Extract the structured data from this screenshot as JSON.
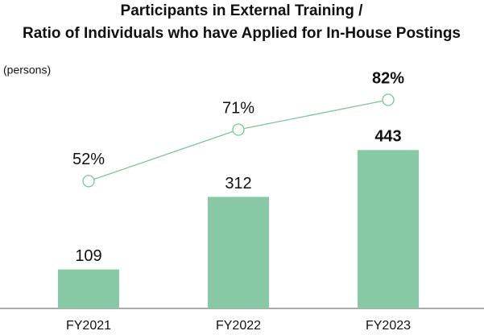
{
  "chart_data": {
    "type": "bar",
    "title": [
      "Participants in External Training /",
      "Ratio of Individuals who have Applied for In-House Postings"
    ],
    "y_label": "(persons)",
    "categories": [
      "FY2021",
      "FY2022",
      "FY2023"
    ],
    "series": [
      {
        "type": "bar",
        "color": "#88c9a5",
        "values": [
          109,
          312,
          443
        ]
      },
      {
        "type": "line",
        "axis": "y2",
        "color": "#7cc49e",
        "values": [
          52,
          71,
          82
        ],
        "value_labels": [
          "52%",
          "71%",
          "82%"
        ]
      }
    ],
    "ylim": [
      0,
      500
    ],
    "y2lim": [
      5,
      71
    ],
    "highlight_last": true
  }
}
